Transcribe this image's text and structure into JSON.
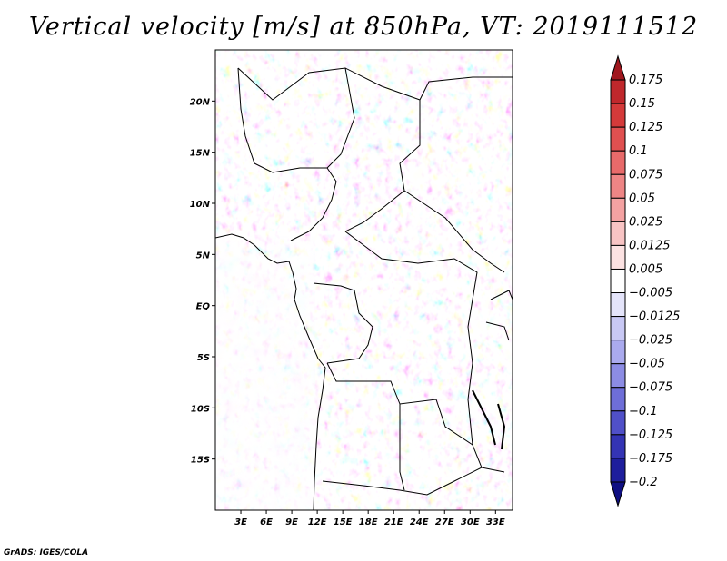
{
  "chart_data": {
    "type": "heatmap",
    "title": "Vertical velocity [m/s] at 850hPa, VT: 2019111512",
    "variable": "Vertical velocity",
    "units": "m/s",
    "level": "850hPa",
    "valid_time": "2019111512",
    "x_range": [
      0,
      35
    ],
    "y_range": [
      -20,
      25
    ],
    "x_ticks": [
      {
        "value": 3,
        "label": "3E"
      },
      {
        "value": 6,
        "label": "6E"
      },
      {
        "value": 9,
        "label": "9E"
      },
      {
        "value": 12,
        "label": "12E"
      },
      {
        "value": 15,
        "label": "15E"
      },
      {
        "value": 18,
        "label": "18E"
      },
      {
        "value": 21,
        "label": "21E"
      },
      {
        "value": 24,
        "label": "24E"
      },
      {
        "value": 27,
        "label": "27E"
      },
      {
        "value": 30,
        "label": "30E"
      },
      {
        "value": 33,
        "label": "33E"
      }
    ],
    "y_ticks": [
      {
        "value": 20,
        "label": "20N"
      },
      {
        "value": 15,
        "label": "15N"
      },
      {
        "value": 10,
        "label": "10N"
      },
      {
        "value": 5,
        "label": "5N"
      },
      {
        "value": 0,
        "label": "EQ"
      },
      {
        "value": -5,
        "label": "5S"
      },
      {
        "value": -10,
        "label": "10S"
      },
      {
        "value": -15,
        "label": "15S"
      }
    ],
    "colorbar": {
      "levels": [
        "0.175",
        "0.15",
        "0.125",
        "0.1",
        "0.075",
        "0.05",
        "0.025",
        "0.0125",
        "0.005",
        "−0.005",
        "−0.0125",
        "−0.025",
        "−0.05",
        "−0.075",
        "−0.1",
        "−0.125",
        "−0.175",
        "−0.2"
      ],
      "colors": [
        "#a0171e",
        "#c0282c",
        "#d43a3a",
        "#e05050",
        "#e86a6a",
        "#ee8585",
        "#f4a2a2",
        "#f8c4c4",
        "#fce2e2",
        "#ffffff",
        "#e4e4fa",
        "#c8c8f4",
        "#aaaaee",
        "#8c8ce4",
        "#6e6ed8",
        "#5050c8",
        "#3434b4",
        "#1e1e9c",
        "#0f0f82"
      ]
    }
  },
  "credit": "GrADS: IGES/COLA"
}
